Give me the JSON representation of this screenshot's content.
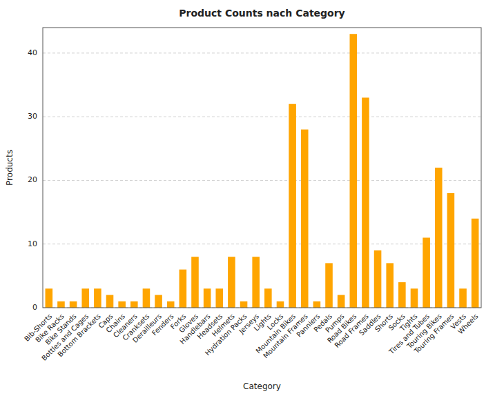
{
  "chart_data": {
    "type": "bar",
    "title": "Product Counts nach Category",
    "xlabel": "Category",
    "ylabel": "Products",
    "categories": [
      "Bib-Shorts",
      "Bike Racks",
      "Bike Stands",
      "Bottles and Cages",
      "Bottom Brackets",
      "Caps",
      "Chains",
      "Cleaners",
      "Cranksets",
      "Derailleurs",
      "Fenders",
      "Forks",
      "Gloves",
      "Handlebars",
      "Headsets",
      "Helmets",
      "Hydration Packs",
      "Jerseys",
      "Lights",
      "Locks",
      "Mountain Bikes",
      "Mountain Frames",
      "Panniers",
      "Pedals",
      "Pumps",
      "Road Bikes",
      "Road Frames",
      "Saddles",
      "Shorts",
      "Socks",
      "Tights",
      "Tires and Tubes",
      "Touring Bikes",
      "Touring Frames",
      "Vests",
      "Wheels"
    ],
    "values": [
      3,
      1,
      1,
      3,
      3,
      2,
      1,
      1,
      3,
      2,
      1,
      6,
      8,
      3,
      3,
      8,
      1,
      8,
      3,
      1,
      32,
      28,
      1,
      7,
      2,
      43,
      33,
      9,
      7,
      4,
      3,
      11,
      22,
      18,
      3,
      14
    ],
    "color": "#FFA500",
    "ylim": [
      0,
      44
    ],
    "yticks": [
      0,
      10,
      20,
      30,
      40
    ],
    "grid": true
  }
}
